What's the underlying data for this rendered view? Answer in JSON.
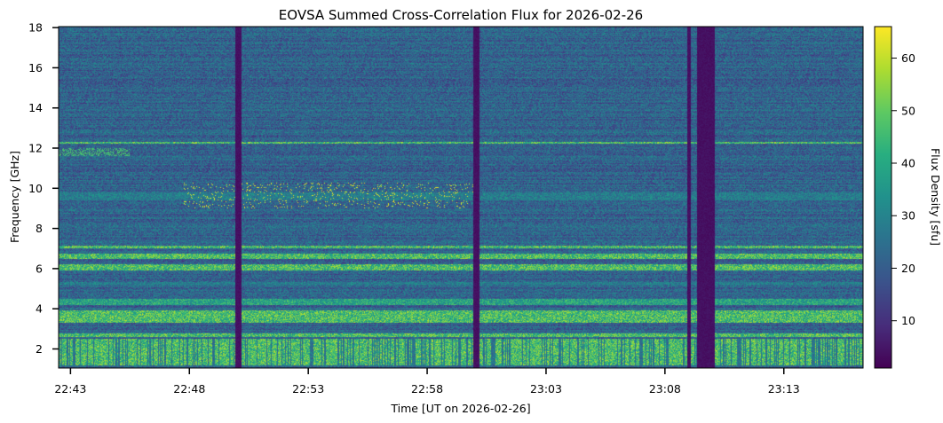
{
  "chart_data": {
    "type": "heatmap",
    "title": "EOVSA Summed Cross-Correlation Flux for 2026-02-26",
    "xlabel": "Time [UT on 2026-02-26]",
    "ylabel": "Frequency [GHz]",
    "colorbar_label": "Flux Density [sfu]",
    "colormap": "viridis",
    "xlim": [
      "22:42:30",
      "23:16:20"
    ],
    "ylim": [
      1.05,
      18.05
    ],
    "clim": [
      1,
      66
    ],
    "x_ticks": [
      "22:43",
      "22:48",
      "22:53",
      "22:58",
      "23:03",
      "23:08",
      "23:13"
    ],
    "y_ticks": [
      2,
      4,
      6,
      8,
      10,
      12,
      14,
      16,
      18
    ],
    "colorbar_ticks": [
      10,
      20,
      30,
      40,
      50,
      60
    ],
    "data_gaps": [
      [
        "22:49:55",
        "22:50:10"
      ],
      [
        "22:59:55",
        "23:00:10"
      ],
      [
        "23:08:55",
        "23:09:05"
      ],
      [
        "23:09:20",
        "23:10:05"
      ]
    ],
    "bright_bands_ghz": [
      {
        "range": [
          1.2,
          2.5
        ],
        "level": "high"
      },
      {
        "range": [
          2.6,
          2.75
        ],
        "level": "high"
      },
      {
        "range": [
          3.3,
          3.9
        ],
        "level": "high"
      },
      {
        "range": [
          4.2,
          4.5
        ],
        "level": "medium-high"
      },
      {
        "range": [
          5.2,
          5.35
        ],
        "level": "medium"
      },
      {
        "range": [
          5.9,
          6.2
        ],
        "level": "high"
      },
      {
        "range": [
          6.5,
          6.75
        ],
        "level": "high"
      },
      {
        "range": [
          7.0,
          7.15
        ],
        "level": "high"
      },
      {
        "range": [
          9.4,
          9.8
        ],
        "level": "medium"
      },
      {
        "range": [
          12.2,
          12.3
        ],
        "level": "high"
      }
    ]
  }
}
